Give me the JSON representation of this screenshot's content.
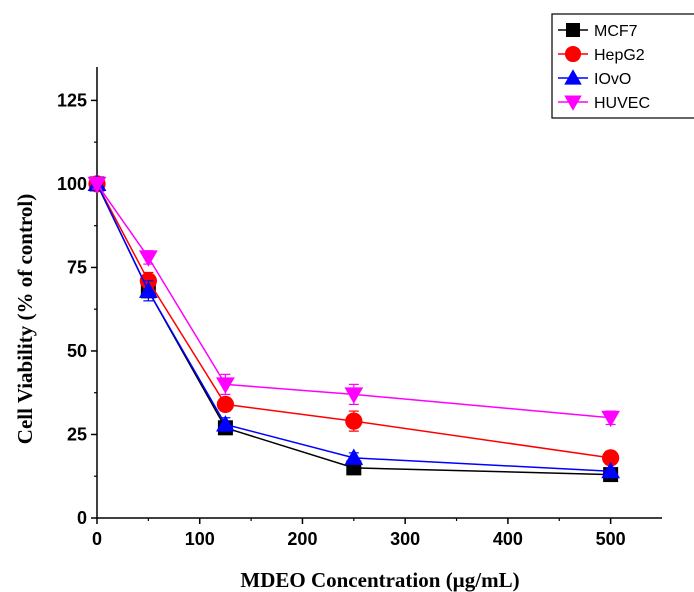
{
  "chart_data": {
    "type": "line",
    "xlabel": "MDEO Concentration (µg/mL)",
    "ylabel": "Cell Viability (% of control)",
    "xlim": [
      0,
      550
    ],
    "ylim": [
      0,
      135
    ],
    "xticks": [
      0,
      100,
      200,
      300,
      400,
      500
    ],
    "yticks": [
      0,
      25,
      50,
      75,
      100,
      125
    ],
    "x": [
      0,
      50,
      125,
      250,
      500
    ],
    "legend_position": "top-right",
    "grid": false,
    "series": [
      {
        "name": "MCF7",
        "color": "#000000",
        "marker": "square",
        "values": [
          100,
          68,
          27,
          15,
          13
        ],
        "errors": [
          1.5,
          2,
          2,
          1,
          1
        ]
      },
      {
        "name": "HepG2",
        "color": "#ff0000",
        "marker": "circle",
        "values": [
          100,
          71,
          34,
          29,
          18
        ],
        "errors": [
          1.5,
          2.5,
          2,
          3,
          1.5
        ]
      },
      {
        "name": "IOvO",
        "color": "#0000ff",
        "marker": "triangle-up",
        "values": [
          100,
          68,
          28,
          18,
          14
        ],
        "errors": [
          1.5,
          3,
          2,
          1.5,
          1
        ]
      },
      {
        "name": "HUVEC",
        "color": "#ff00ff",
        "marker": "triangle-down",
        "values": [
          100,
          78,
          40,
          37,
          30
        ],
        "errors": [
          1.5,
          2,
          3,
          3,
          2
        ]
      }
    ]
  }
}
